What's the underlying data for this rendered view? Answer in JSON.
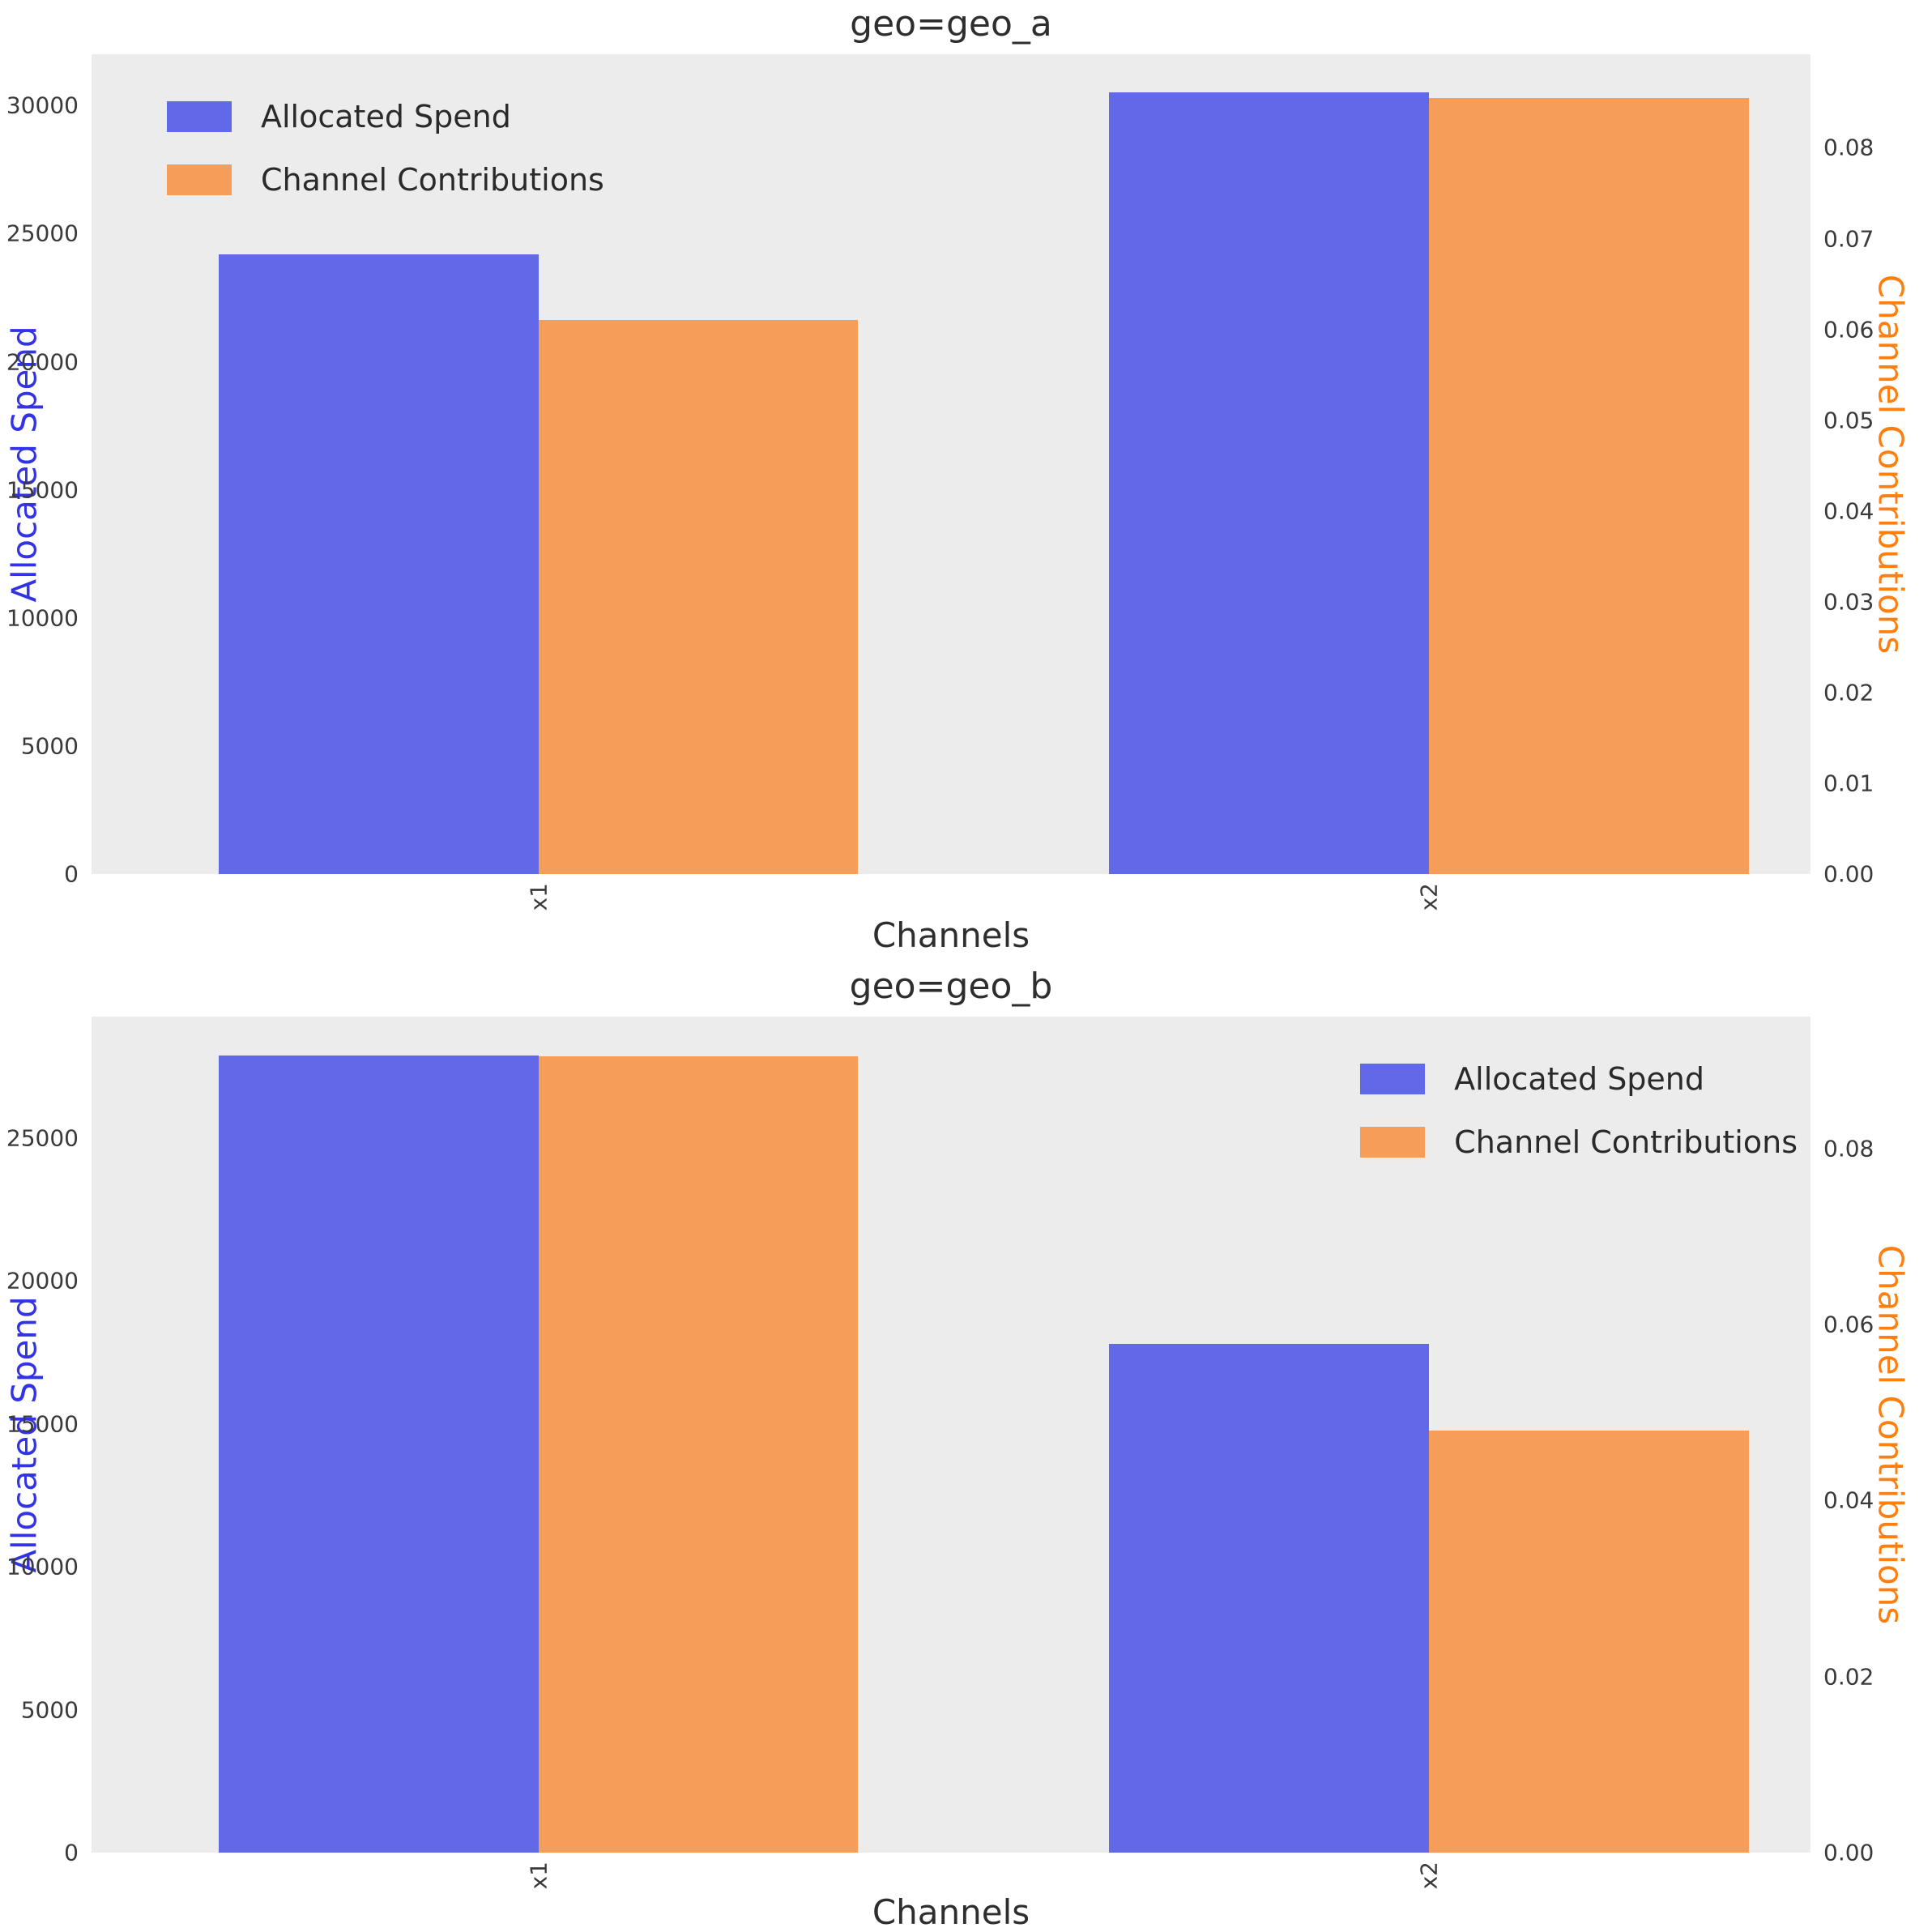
{
  "figure": {
    "background": "#ffffff",
    "plot_background": "#ececec",
    "colors": {
      "allocated_spend": "#6269e8",
      "channel_contributions": "#f59e5a",
      "left_axis_label": "#3232e6",
      "right_axis_label": "#ff7f0e",
      "tick_text": "#3a3a3a"
    },
    "legend": {
      "items": [
        {
          "label": "Allocated Spend",
          "color_key": "allocated_spend"
        },
        {
          "label": "Channel Contributions",
          "color_key": "channel_contributions"
        }
      ]
    }
  },
  "chart_data": [
    {
      "type": "bar",
      "title": "geo=geo_a",
      "xlabel": "Channels",
      "ylabel_left": "Allocated Spend",
      "ylabel_right": "Channel Contributions",
      "categories": [
        "x1",
        "x2"
      ],
      "series": [
        {
          "name": "Allocated Spend",
          "axis": "left",
          "values": [
            24200,
            30500
          ]
        },
        {
          "name": "Channel Contributions",
          "axis": "right",
          "values": [
            0.061,
            0.0855
          ]
        }
      ],
      "ylim_left": [
        0,
        32000
      ],
      "ylim_right": [
        0,
        0.0903
      ],
      "yticks_left": [
        0,
        5000,
        10000,
        15000,
        20000,
        25000,
        30000
      ],
      "yticks_right": [
        0,
        0.01,
        0.02,
        0.03,
        0.04,
        0.05,
        0.06,
        0.07,
        0.08
      ],
      "legend_position": "upper left",
      "grid": false
    },
    {
      "type": "bar",
      "title": "geo=geo_b",
      "xlabel": "Channels",
      "ylabel_left": "Allocated Spend",
      "ylabel_right": "Channel Contributions",
      "categories": [
        "x1",
        "x2"
      ],
      "series": [
        {
          "name": "Allocated Spend",
          "axis": "left",
          "values": [
            27900,
            17800
          ]
        },
        {
          "name": "Channel Contributions",
          "axis": "right",
          "values": [
            0.0905,
            0.048
          ]
        }
      ],
      "ylim_left": [
        0,
        29250
      ],
      "ylim_right": [
        0,
        0.095
      ],
      "yticks_left": [
        0,
        5000,
        10000,
        15000,
        20000,
        25000
      ],
      "yticks_right": [
        0,
        0.02,
        0.04,
        0.06,
        0.08
      ],
      "legend_position": "upper right",
      "grid": false
    }
  ]
}
